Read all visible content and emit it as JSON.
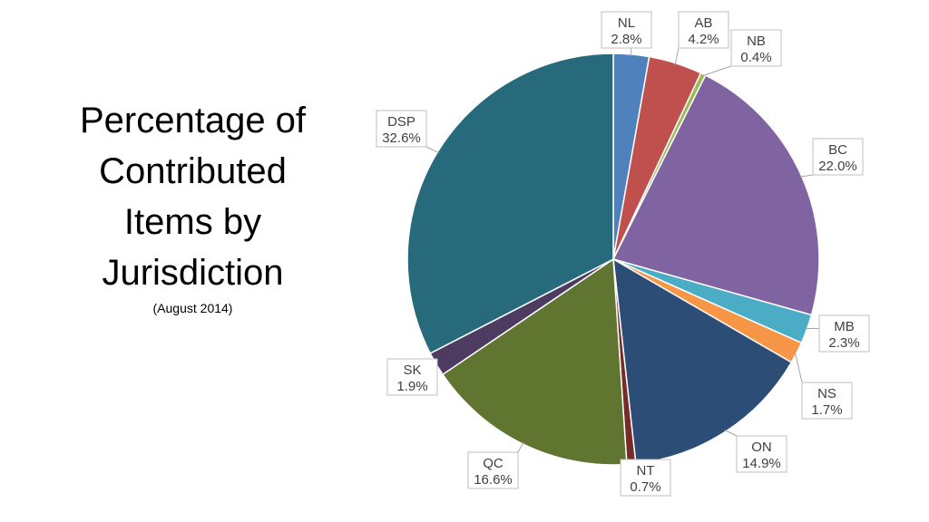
{
  "slide": {
    "title": "Percentage of\nContributed\nItems by\nJurisdiction",
    "subtitle": "(August 2014)"
  },
  "chart_data": {
    "type": "pie",
    "title": "Percentage of Contributed Items by Jurisdiction",
    "subtitle": "(August 2014)",
    "slices": [
      {
        "label": "NL",
        "value": 2.8,
        "display": "2.8%",
        "color": "#4f81bd"
      },
      {
        "label": "AB",
        "value": 4.2,
        "display": "4.2%",
        "color": "#c0504d"
      },
      {
        "label": "NB",
        "value": 0.4,
        "display": "0.4%",
        "color": "#9bbb59"
      },
      {
        "label": "BC",
        "value": 22.0,
        "display": "22.0%",
        "color": "#8064a2"
      },
      {
        "label": "MB",
        "value": 2.3,
        "display": "2.3%",
        "color": "#4bacc6"
      },
      {
        "label": "NS",
        "value": 1.7,
        "display": "1.7%",
        "color": "#f79646"
      },
      {
        "label": "ON",
        "value": 14.9,
        "display": "14.9%",
        "color": "#2c4d75"
      },
      {
        "label": "NT",
        "value": 0.7,
        "display": "0.7%",
        "color": "#772c2a"
      },
      {
        "label": "QC",
        "value": 16.6,
        "display": "16.6%",
        "color": "#5f7530"
      },
      {
        "label": "SK",
        "value": 1.9,
        "display": "1.9%",
        "color": "#4d3b62"
      },
      {
        "label": "DSP",
        "value": 32.6,
        "display": "32.6%",
        "color": "#276a7c"
      }
    ],
    "start": "12 o'clock",
    "direction": "clockwise",
    "data_labels": "outside with leader lines",
    "legend": "none"
  }
}
